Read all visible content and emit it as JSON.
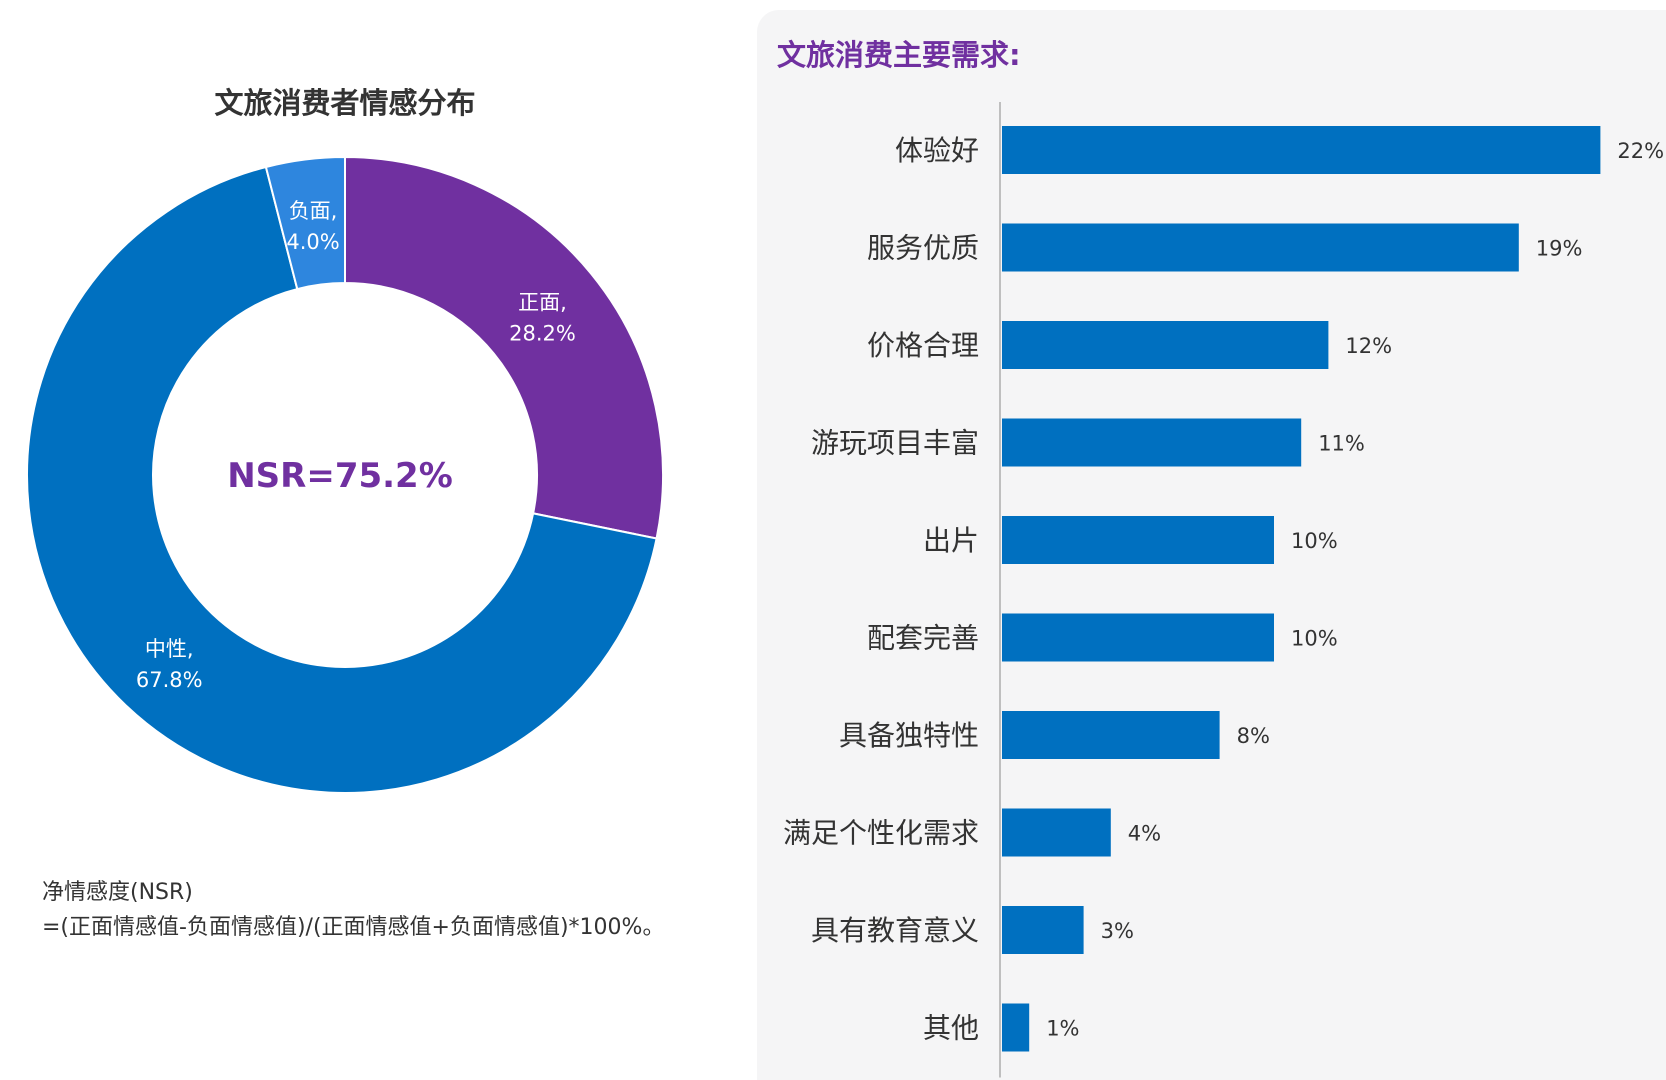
{
  "left": {
    "title": "文旅消费者情感分布",
    "center_label": "NSR=75.2%",
    "note_line1": "净情感度(NSR)",
    "note_line2": "=(正面情感值-负面情感值)/(正面情感值+负面情感值)*100%。"
  },
  "right": {
    "title": "文旅消费主要需求:"
  },
  "chart_data": [
    {
      "type": "pie",
      "title": "文旅消费者情感分布",
      "center_text": "NSR=75.2%",
      "slices": [
        {
          "name": "正面",
          "value": 28.2,
          "label_line1": "正面,",
          "label_line2": "28.2%",
          "color": "#7030a0"
        },
        {
          "name": "中性",
          "value": 67.8,
          "label_line1": "中性,",
          "label_line2": "67.8%",
          "color": "#0070c0"
        },
        {
          "name": "负面",
          "value": 4.0,
          "label_line1": "负面,",
          "label_line2": "4.0%",
          "color": "#2e86de"
        }
      ]
    },
    {
      "type": "bar",
      "orientation": "horizontal",
      "title": "文旅消费主要需求:",
      "categories": [
        "体验好",
        "服务优质",
        "价格合理",
        "游玩项目丰富",
        "出片",
        "配套完善",
        "具备独特性",
        "满足个性化需求",
        "具有教育意义",
        "其他"
      ],
      "values": [
        22,
        19,
        12,
        11,
        10,
        10,
        8,
        4,
        3,
        1
      ],
      "value_labels": [
        "22%",
        "19%",
        "12%",
        "11%",
        "10%",
        "10%",
        "8%",
        "4%",
        "3%",
        "1%"
      ],
      "color": "#0070c0"
    }
  ]
}
